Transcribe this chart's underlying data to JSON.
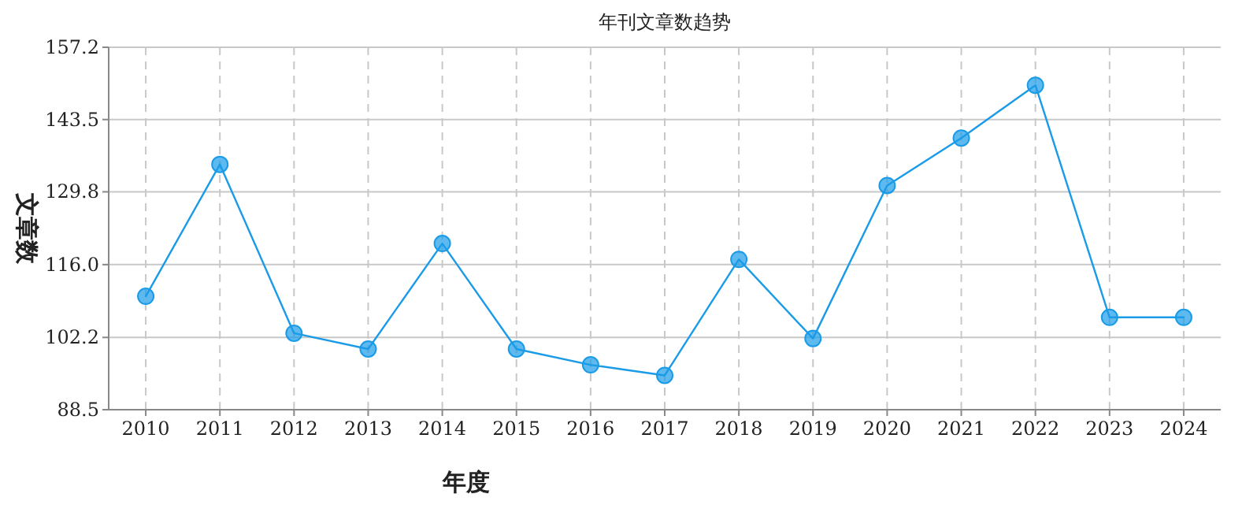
{
  "chart_data": {
    "type": "line",
    "title": "年刊文章数趋势",
    "xlabel": "年度",
    "ylabel": "文章数",
    "categories": [
      "2010",
      "2011",
      "2012",
      "2013",
      "2014",
      "2015",
      "2016",
      "2017",
      "2018",
      "2019",
      "2020",
      "2021",
      "2022",
      "2023",
      "2024"
    ],
    "series": [
      {
        "color": "#1a9be8",
        "values": [
          110,
          135,
          103,
          100,
          120,
          100,
          97,
          95,
          117,
          102,
          131,
          140,
          150,
          106,
          106
        ]
      }
    ],
    "ylim": [
      88.5,
      157.2
    ],
    "yticks": [
      88.5,
      102.2,
      {
        "value": 116,
        "label": "116.0"
      },
      129.8,
      143.5,
      157.2
    ],
    "grid": true,
    "marker": "circle",
    "line_style": "solid"
  }
}
